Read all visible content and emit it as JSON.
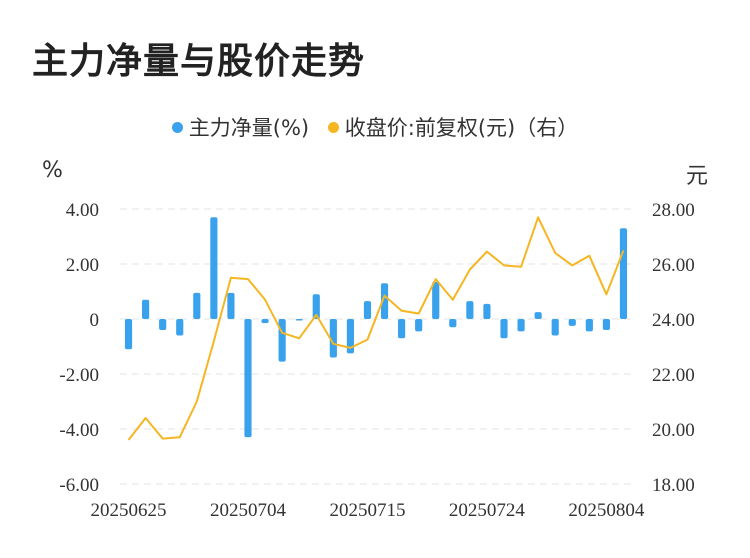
{
  "title": "主力净量与股价走势",
  "legend": {
    "bar_label": "主力净量(%)",
    "line_label": "收盘价:前复权(元)（右）"
  },
  "units": {
    "left": "%",
    "right": "元"
  },
  "colors": {
    "bar": "#3aa1ec",
    "line": "#f5b622",
    "grid": "#e3e3e3",
    "text": "#333333"
  },
  "chart_data": {
    "type": "bar+line",
    "x": [
      "20250625",
      "20250626",
      "20250627",
      "20250630",
      "20250701",
      "20250702",
      "20250703",
      "20250704",
      "20250707",
      "20250708",
      "20250709",
      "20250710",
      "20250711",
      "20250714",
      "20250715",
      "20250716",
      "20250717",
      "20250718",
      "20250721",
      "20250722",
      "20250723",
      "20250724",
      "20250725",
      "20250728",
      "20250729",
      "20250730",
      "20250731",
      "20250801",
      "20250804",
      "20250805"
    ],
    "x_tick_labels": [
      "20250625",
      "20250704",
      "20250715",
      "20250724",
      "20250804"
    ],
    "x_tick_index": [
      0,
      7,
      14,
      21,
      28
    ],
    "series": [
      {
        "name": "主力净量(%)",
        "type": "bar",
        "axis": "left",
        "values": [
          -1.1,
          0.7,
          -0.4,
          -0.6,
          0.95,
          3.7,
          0.95,
          -4.3,
          -0.15,
          -1.55,
          -0.05,
          0.9,
          -1.4,
          -1.25,
          0.65,
          1.3,
          -0.7,
          -0.45,
          1.35,
          -0.3,
          0.65,
          0.55,
          -0.7,
          -0.45,
          0.25,
          -0.6,
          -0.25,
          -0.45,
          -0.4,
          3.3
        ]
      },
      {
        "name": "收盘价:前复权(元)（右）",
        "type": "line",
        "axis": "right",
        "values": [
          19.6,
          20.4,
          19.65,
          19.7,
          21.0,
          23.2,
          25.5,
          25.45,
          24.7,
          23.5,
          23.3,
          24.15,
          23.1,
          22.95,
          23.25,
          24.85,
          24.3,
          24.2,
          25.45,
          24.7,
          25.8,
          26.45,
          25.95,
          25.9,
          27.7,
          26.4,
          25.95,
          26.3,
          24.9,
          26.5
        ]
      }
    ],
    "y_left": {
      "ticks": [
        "4.00",
        "2.00",
        "0",
        "-2.00",
        "-4.00",
        "-6.00"
      ],
      "range": [
        -6,
        4
      ]
    },
    "y_right": {
      "ticks": [
        "28.00",
        "26.00",
        "24.00",
        "22.00",
        "20.00",
        "18.00"
      ],
      "range": [
        18,
        28
      ]
    },
    "grid": "horizontal dashed"
  }
}
